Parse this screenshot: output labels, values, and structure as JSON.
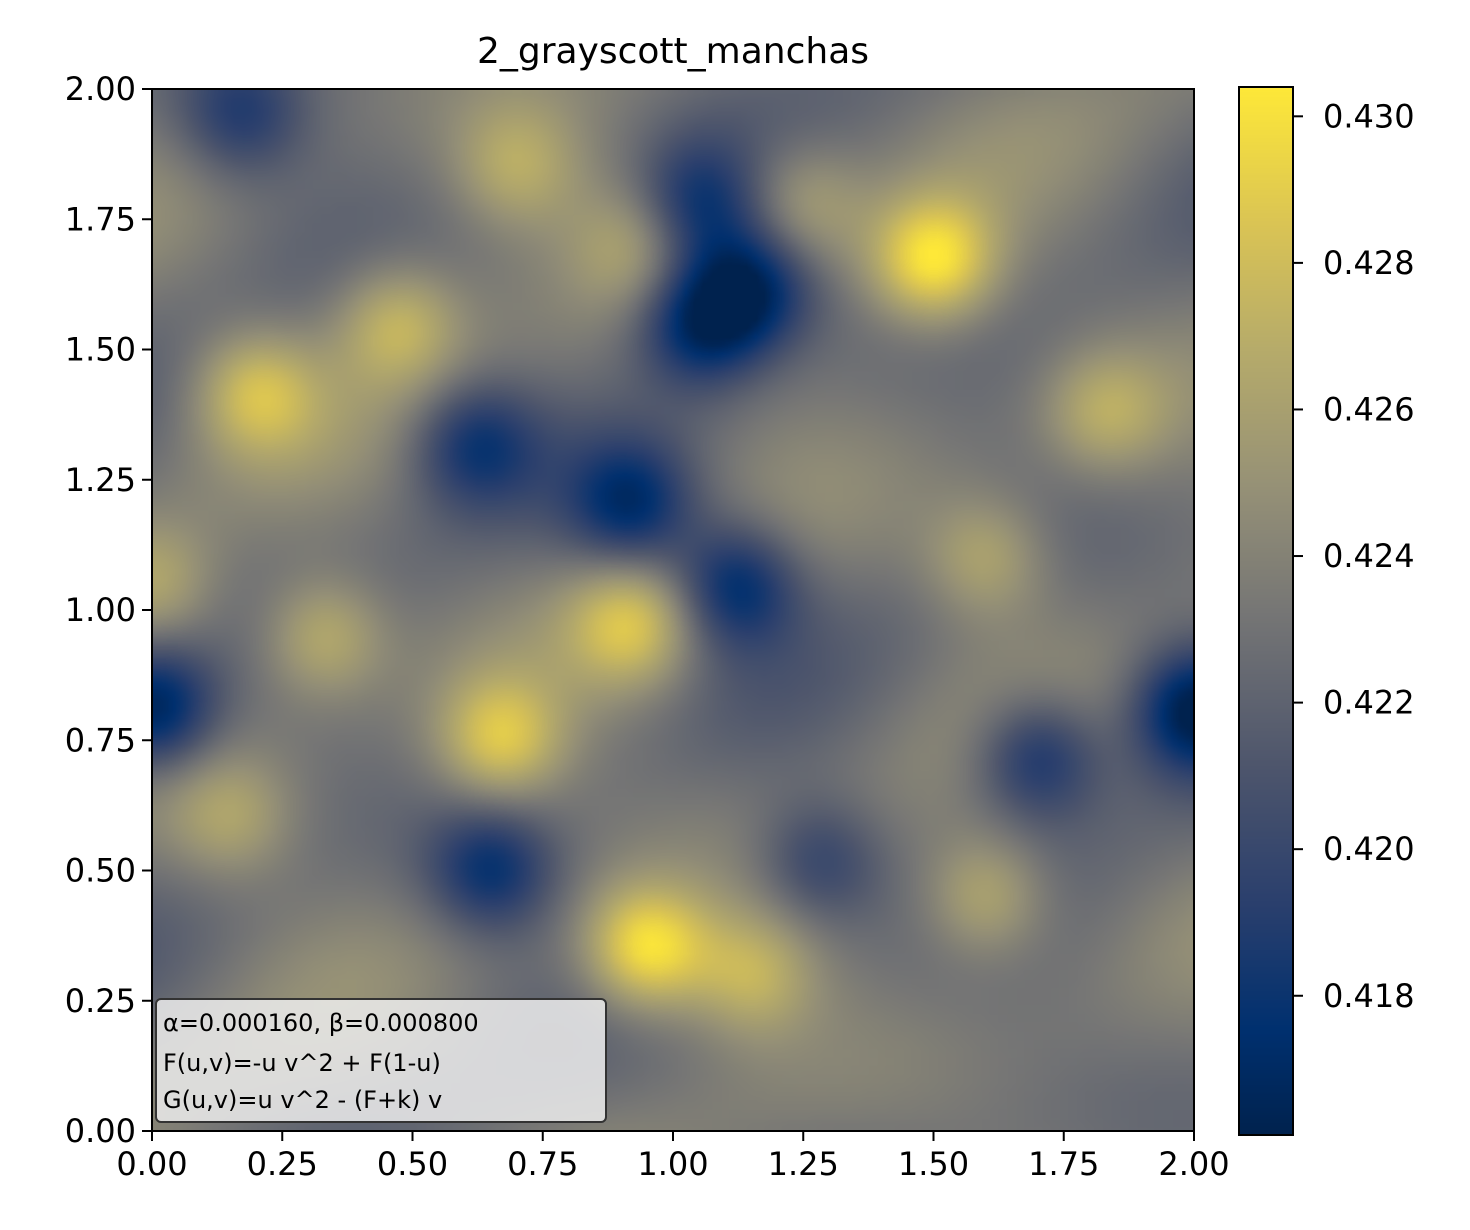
{
  "chart_data": {
    "type": "heatmap",
    "title": "2_grayscott_manchas",
    "xlabel": "",
    "ylabel": "",
    "xlim": [
      0.0,
      2.0
    ],
    "ylim": [
      0.0,
      2.0
    ],
    "x_ticks": [
      "0.00",
      "0.25",
      "0.50",
      "0.75",
      "1.00",
      "1.25",
      "1.50",
      "1.75",
      "2.00"
    ],
    "y_ticks": [
      "0.00",
      "0.25",
      "0.50",
      "0.75",
      "1.00",
      "1.25",
      "1.50",
      "1.75",
      "2.00"
    ],
    "colormap": "cividis",
    "colorbar": {
      "range": [
        0.4161,
        0.4304
      ],
      "ticks": [
        {
          "value": 0.418,
          "label": "0.418"
        },
        {
          "value": 0.42,
          "label": "0.420"
        },
        {
          "value": 0.422,
          "label": "0.422"
        },
        {
          "value": 0.424,
          "label": "0.424"
        },
        {
          "value": 0.426,
          "label": "0.426"
        },
        {
          "value": 0.428,
          "label": "0.428"
        },
        {
          "value": 0.43,
          "label": "0.430"
        }
      ]
    },
    "grid": false,
    "annotation": [
      "α=0.000160, β=0.000800",
      "F(u,v)=-u v^2 + F(1-u)",
      "G(u,v)=u v^2 - (F+k) v"
    ],
    "field_features": [
      {
        "x": 1.5,
        "y": 1.67,
        "value": 0.4303,
        "kind": "peak"
      },
      {
        "x": 0.95,
        "y": 0.35,
        "value": 0.4303,
        "kind": "peak"
      },
      {
        "x": 0.67,
        "y": 0.75,
        "value": 0.4285,
        "kind": "peak"
      },
      {
        "x": 0.2,
        "y": 1.42,
        "value": 0.428,
        "kind": "peak"
      },
      {
        "x": 0.47,
        "y": 1.55,
        "value": 0.4275,
        "kind": "peak"
      },
      {
        "x": 0.33,
        "y": 0.95,
        "value": 0.4275,
        "kind": "peak"
      },
      {
        "x": 0.92,
        "y": 0.97,
        "value": 0.428,
        "kind": "peak"
      },
      {
        "x": 1.6,
        "y": 0.45,
        "value": 0.4275,
        "kind": "peak"
      },
      {
        "x": 1.15,
        "y": 0.3,
        "value": 0.4272,
        "kind": "peak"
      },
      {
        "x": 1.6,
        "y": 1.1,
        "value": 0.4268,
        "kind": "peak"
      },
      {
        "x": 1.83,
        "y": 1.38,
        "value": 0.4268,
        "kind": "peak"
      },
      {
        "x": 0.7,
        "y": 1.85,
        "value": 0.4265,
        "kind": "peak"
      },
      {
        "x": 1.25,
        "y": 1.78,
        "value": 0.4262,
        "kind": "peak"
      },
      {
        "x": 0.15,
        "y": 0.6,
        "value": 0.4262,
        "kind": "peak"
      },
      {
        "x": 0.0,
        "y": 1.05,
        "value": 0.4265,
        "kind": "peak"
      },
      {
        "x": 0.92,
        "y": 1.7,
        "value": 0.426,
        "kind": "peak"
      },
      {
        "x": 0.0,
        "y": 0.81,
        "value": 0.4161,
        "kind": "trough"
      },
      {
        "x": 2.0,
        "y": 0.81,
        "value": 0.4161,
        "kind": "trough"
      },
      {
        "x": 1.05,
        "y": 1.55,
        "value": 0.417,
        "kind": "trough"
      },
      {
        "x": 1.15,
        "y": 1.62,
        "value": 0.4172,
        "kind": "trough"
      },
      {
        "x": 1.12,
        "y": 1.05,
        "value": 0.4172,
        "kind": "trough"
      },
      {
        "x": 0.92,
        "y": 1.2,
        "value": 0.4178,
        "kind": "trough"
      },
      {
        "x": 1.7,
        "y": 0.72,
        "value": 0.4178,
        "kind": "trough"
      },
      {
        "x": 0.65,
        "y": 0.5,
        "value": 0.4182,
        "kind": "trough"
      },
      {
        "x": 0.62,
        "y": 1.32,
        "value": 0.4185,
        "kind": "trough"
      },
      {
        "x": 1.05,
        "y": 1.78,
        "value": 0.4185,
        "kind": "trough"
      },
      {
        "x": 0.17,
        "y": 1.95,
        "value": 0.4192,
        "kind": "trough"
      },
      {
        "x": 1.28,
        "y": 0.52,
        "value": 0.4195,
        "kind": "trough"
      }
    ]
  }
}
